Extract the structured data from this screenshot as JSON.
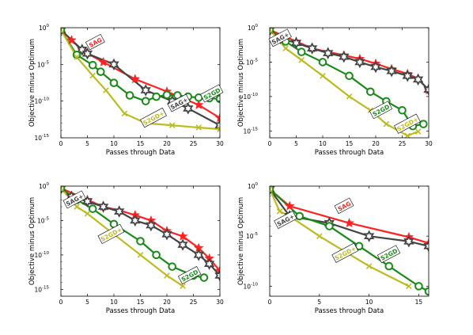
{
  "chart_data": [
    {
      "type": "line",
      "xlabel": "Passes through Data",
      "ylabel": "Objective minus Optimum",
      "xlim": [
        0,
        30
      ],
      "ylim": [
        1e-15,
        1
      ],
      "yscale": "log",
      "xticks": [
        0,
        5,
        10,
        15,
        20,
        25,
        30
      ],
      "yticks": [
        {
          "v": 1,
          "label": "10^0"
        },
        {
          "v": 1e-05,
          "label": "10^-5"
        },
        {
          "v": 1e-10,
          "label": "10^-10"
        },
        {
          "v": 1e-15,
          "label": "10^-15"
        }
      ],
      "series": [
        {
          "name": "SAG",
          "color": "#ff2222",
          "marker": "star",
          "x": [
            0,
            2,
            4,
            8,
            14,
            20,
            26,
            30
          ],
          "y": [
            0.5,
            0.02,
            0.0008,
            2e-05,
            1e-07,
            2e-09,
            3e-11,
            5e-13
          ]
        },
        {
          "name": "SAG+",
          "color": "#444444",
          "marker": "hexstar",
          "x": [
            0,
            4,
            5,
            10,
            16,
            21,
            24,
            30
          ],
          "y": [
            0.5,
            0.001,
            0.0003,
            1e-05,
            3e-09,
            1e-10,
            1e-11,
            5e-14
          ]
        },
        {
          "name": "S2GD",
          "color": "#1a8a1a",
          "marker": "circle",
          "x": [
            0,
            3,
            6,
            7.5,
            10,
            13,
            16,
            18,
            20,
            22,
            24,
            26,
            28,
            30
          ],
          "y": [
            0.5,
            0.0002,
            8e-06,
            1e-06,
            3e-08,
            6e-10,
            1e-10,
            4e-10,
            7e-10,
            6e-10,
            4e-10,
            3e-10,
            2.5e-10,
            2e-10
          ]
        },
        {
          "name": "S2GD+",
          "color": "#bbbb22",
          "marker": "x",
          "x": [
            0,
            3,
            6,
            8.5,
            12,
            16,
            21,
            26,
            30
          ],
          "y": [
            0.5,
            0.0001,
            3e-07,
            3e-09,
            2e-12,
            1e-13,
            5e-14,
            2.5e-14,
            1.5e-14
          ]
        }
      ],
      "labels": [
        {
          "text": "SAG",
          "series": 0,
          "x": 6.5,
          "y": 0.01
        },
        {
          "text": "SAG+",
          "series": 1,
          "x": 22.3,
          "y": 5e-11
        },
        {
          "text": "S2GD",
          "series": 2,
          "x": 28.5,
          "y": 1e-09
        },
        {
          "text": "S2GD+",
          "series": 3,
          "x": 17.5,
          "y": 5e-13
        }
      ]
    },
    {
      "type": "line",
      "xlabel": "Passes through Data",
      "ylabel": "Objective minus Optimum",
      "xlim": [
        0,
        30
      ],
      "ylim": [
        1e-16,
        1
      ],
      "yscale": "log",
      "xticks": [
        0,
        5,
        10,
        15,
        20,
        25,
        30
      ],
      "yticks": [
        {
          "v": 1,
          "label": "10^0"
        },
        {
          "v": 1e-05,
          "label": "10^-5"
        },
        {
          "v": 1e-10,
          "label": "10^-10"
        },
        {
          "v": 1e-15,
          "label": "10^-15"
        }
      ],
      "series": [
        {
          "name": "",
          "color": "#ff2222",
          "marker": "star",
          "x": [
            0,
            5,
            8,
            11,
            14,
            17,
            20,
            23,
            26,
            28,
            30
          ],
          "y": [
            0.5,
            0.01,
            0.001,
            0.0003,
            0.0001,
            3e-05,
            6e-06,
            1e-06,
            2e-07,
            4e-08,
            8e-10
          ]
        },
        {
          "name": "SAG+",
          "color": "#444444",
          "marker": "hexstar",
          "x": [
            0,
            2,
            5,
            8,
            11,
            14,
            17,
            20,
            23,
            26,
            28,
            30
          ],
          "y": [
            0.5,
            0.03,
            0.006,
            0.001,
            0.0002,
            6e-05,
            1e-05,
            2e-06,
            5e-07,
            1e-07,
            3e-08,
            1e-09
          ]
        },
        {
          "name": "S2GD",
          "color": "#1a8a1a",
          "marker": "circle",
          "x": [
            0,
            3,
            6,
            10,
            15,
            19,
            22,
            25,
            27,
            29
          ],
          "y": [
            0.5,
            0.01,
            0.0003,
            1e-05,
            1e-07,
            5e-10,
            2e-11,
            1e-12,
            5e-15,
            1e-14
          ]
        },
        {
          "name": "S2GD+",
          "color": "#bbbb22",
          "marker": "x",
          "x": [
            0,
            3,
            6,
            10,
            15,
            19,
            22,
            26,
            28
          ],
          "y": [
            0.5,
            0.001,
            2e-05,
            1e-07,
            1e-10,
            1e-12,
            1e-14,
            2e-16,
            8e-16
          ]
        }
      ],
      "labels": [
        {
          "text": "SAG+",
          "series": 1,
          "x": 2,
          "y": 0.03
        },
        {
          "text": "S2GD",
          "series": 2,
          "x": 21,
          "y": 1e-12
        },
        {
          "text": "S2GD+",
          "series": 3,
          "x": 26,
          "y": 1e-14
        }
      ]
    },
    {
      "type": "line",
      "xlabel": "Passes through Data",
      "ylabel": "Objective minus Optimum",
      "xlim": [
        0,
        30
      ],
      "ylim": [
        1e-16,
        1
      ],
      "yscale": "log",
      "xticks": [
        0,
        5,
        10,
        15,
        20,
        25,
        30
      ],
      "yticks": [
        {
          "v": 1,
          "label": "10^0"
        },
        {
          "v": 1e-05,
          "label": "10^-5"
        },
        {
          "v": 1e-10,
          "label": "10^-10"
        },
        {
          "v": 1e-15,
          "label": "10^-15"
        }
      ],
      "series": [
        {
          "name": "",
          "color": "#ff2222",
          "marker": "star",
          "x": [
            0,
            5,
            8,
            11,
            14,
            17,
            20,
            23,
            26,
            28,
            30
          ],
          "y": [
            0.5,
            0.01,
            0.001,
            0.0003,
            6e-05,
            1e-05,
            3e-07,
            5e-08,
            1e-09,
            3e-11,
            5e-13
          ]
        },
        {
          "name": "SAG+",
          "color": "#444444",
          "marker": "hexstar",
          "x": [
            0,
            2,
            5,
            8,
            11,
            14,
            17,
            20,
            23,
            26,
            28,
            30
          ],
          "y": [
            0.5,
            0.03,
            0.006,
            0.001,
            0.0002,
            1e-05,
            2e-06,
            1e-07,
            3e-09,
            1e-10,
            5e-12,
            1e-13
          ]
        },
        {
          "name": "S2GD",
          "color": "#1a8a1a",
          "marker": "circle",
          "x": [
            0,
            3,
            6,
            10,
            15,
            18,
            21,
            25,
            27
          ],
          "y": [
            0.5,
            0.01,
            0.0005,
            3e-06,
            1e-08,
            1e-10,
            2e-12,
            1e-13,
            5e-14
          ]
        },
        {
          "name": "S2GD+",
          "color": "#bbbb22",
          "marker": "x",
          "x": [
            0,
            3,
            5,
            10,
            15,
            20,
            23
          ],
          "y": [
            0.5,
            0.001,
            0.0001,
            1e-07,
            1e-10,
            1e-13,
            3e-15
          ]
        }
      ],
      "labels": [
        {
          "text": "SAG+",
          "series": 1,
          "x": 2.6,
          "y": 0.01
        },
        {
          "text": "S2GD+",
          "series": 3,
          "x": 9.5,
          "y": 1e-07
        },
        {
          "text": "S2GD",
          "series": 2,
          "x": 24.3,
          "y": 1e-13
        }
      ]
    },
    {
      "type": "line",
      "xlabel": "Passes through Data",
      "ylabel": "Objective minus Optimum",
      "xlim": [
        0,
        16
      ],
      "ylim": [
        1e-11,
        1
      ],
      "yscale": "log",
      "xticks": [
        0,
        5,
        10,
        15
      ],
      "yticks": [
        {
          "v": 1,
          "label": "10^0"
        },
        {
          "v": 1e-05,
          "label": "10^-5"
        },
        {
          "v": 1e-10,
          "label": "10^-10"
        }
      ],
      "series": [
        {
          "name": "SAG",
          "color": "#ff2222",
          "marker": "star",
          "x": [
            0,
            2,
            8,
            14,
            16
          ],
          "y": [
            0.5,
            0.01,
            0.0002,
            8e-06,
            2e-06
          ]
        },
        {
          "name": "SAG+",
          "color": "#444444",
          "marker": "hexstar",
          "x": [
            0,
            2,
            6,
            10,
            14,
            16
          ],
          "y": [
            0.5,
            0.001,
            0.0002,
            1e-05,
            3e-06,
            1e-06
          ]
        },
        {
          "name": "S2GD",
          "color": "#1a8a1a",
          "marker": "circle",
          "x": [
            0,
            3,
            6,
            9,
            12,
            15,
            16
          ],
          "y": [
            0.5,
            0.001,
            0.0001,
            1e-06,
            1e-08,
            1e-10,
            3e-11
          ]
        },
        {
          "name": "S2GD+",
          "color": "#bbbb22",
          "marker": "x",
          "x": [
            0,
            1,
            2,
            5,
            10,
            14
          ],
          "y": [
            0.5,
            0.003,
            0.001,
            1e-05,
            1e-08,
            1e-10
          ]
        }
      ],
      "labels": [
        {
          "text": "SAG",
          "series": 0,
          "x": 7.5,
          "y": 0.01
        },
        {
          "text": "SAG+",
          "series": 1,
          "x": 1.6,
          "y": 0.0004
        },
        {
          "text": "S2GD+",
          "series": 3,
          "x": 7.6,
          "y": 2e-07
        },
        {
          "text": "S2GD",
          "series": 2,
          "x": 12,
          "y": 1.5e-07
        }
      ]
    }
  ]
}
